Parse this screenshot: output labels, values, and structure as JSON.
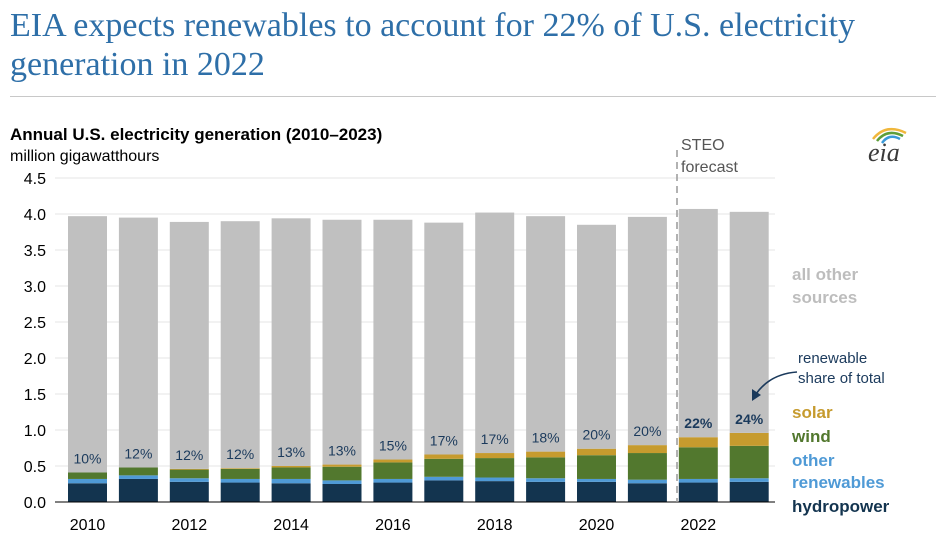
{
  "header": {
    "title": "EIA expects renewables to account for 22% of U.S. electricity generation in 2022"
  },
  "logo": {
    "text": "eia"
  },
  "forecast_label": {
    "line1": "STEO",
    "line2": "forecast"
  },
  "annotation": {
    "line1": "renewable",
    "line2": "share of total"
  },
  "colors": {
    "hydropower": "#13344f",
    "other_renewables": "#4f9ad6",
    "wind": "#52782e",
    "solar": "#c69b2e",
    "all_other": "#c0c0c0",
    "title": "#2e6fa8"
  },
  "chart_data": {
    "type": "bar",
    "stacked": true,
    "title": "Annual U.S. electricity generation (2010–2023)",
    "ylabel": "million gigawatthours",
    "xlabel": "",
    "ylim": [
      0,
      4.5
    ],
    "yticks": [
      "0.0",
      "0.5",
      "1.0",
      "1.5",
      "2.0",
      "2.5",
      "3.0",
      "3.5",
      "4.0",
      "4.5"
    ],
    "categories": [
      "2010",
      "2011",
      "2012",
      "2013",
      "2014",
      "2015",
      "2016",
      "2017",
      "2018",
      "2019",
      "2020",
      "2021",
      "2022",
      "2023"
    ],
    "xtick_labels": [
      "2010",
      "2012",
      "2014",
      "2016",
      "2018",
      "2020",
      "2022"
    ],
    "totals": [
      3.97,
      3.95,
      3.89,
      3.9,
      3.94,
      3.92,
      3.92,
      3.88,
      4.02,
      3.97,
      3.85,
      3.96,
      4.07,
      4.03
    ],
    "series": [
      {
        "name": "hydropower",
        "values": [
          0.26,
          0.32,
          0.28,
          0.27,
          0.26,
          0.25,
          0.27,
          0.3,
          0.29,
          0.28,
          0.28,
          0.26,
          0.27,
          0.28
        ]
      },
      {
        "name": "other renewables",
        "values": [
          0.06,
          0.05,
          0.05,
          0.05,
          0.06,
          0.05,
          0.05,
          0.05,
          0.05,
          0.05,
          0.04,
          0.05,
          0.05,
          0.05
        ]
      },
      {
        "name": "wind",
        "values": [
          0.09,
          0.11,
          0.12,
          0.14,
          0.16,
          0.19,
          0.23,
          0.25,
          0.27,
          0.29,
          0.33,
          0.37,
          0.44,
          0.45
        ]
      },
      {
        "name": "solar",
        "values": [
          0.0,
          0.0,
          0.01,
          0.01,
          0.02,
          0.03,
          0.04,
          0.06,
          0.07,
          0.08,
          0.09,
          0.11,
          0.14,
          0.18
        ]
      },
      {
        "name": "all other sources",
        "values": [
          3.56,
          3.47,
          3.43,
          3.43,
          3.44,
          3.4,
          3.33,
          3.22,
          3.34,
          3.27,
          3.11,
          3.17,
          3.17,
          3.07
        ]
      }
    ],
    "share_labels": [
      "10%",
      "12%",
      "12%",
      "12%",
      "13%",
      "13%",
      "15%",
      "17%",
      "17%",
      "18%",
      "20%",
      "20%",
      "22%",
      "24%"
    ],
    "legend": [
      {
        "label": "all other",
        "label2": "sources",
        "series": "all_other"
      },
      {
        "label": "solar",
        "series": "solar"
      },
      {
        "label": "wind",
        "series": "wind"
      },
      {
        "label": "other",
        "label2": "renewables",
        "series": "other_renewables"
      },
      {
        "label": "hydropower",
        "series": "hydropower"
      }
    ]
  }
}
